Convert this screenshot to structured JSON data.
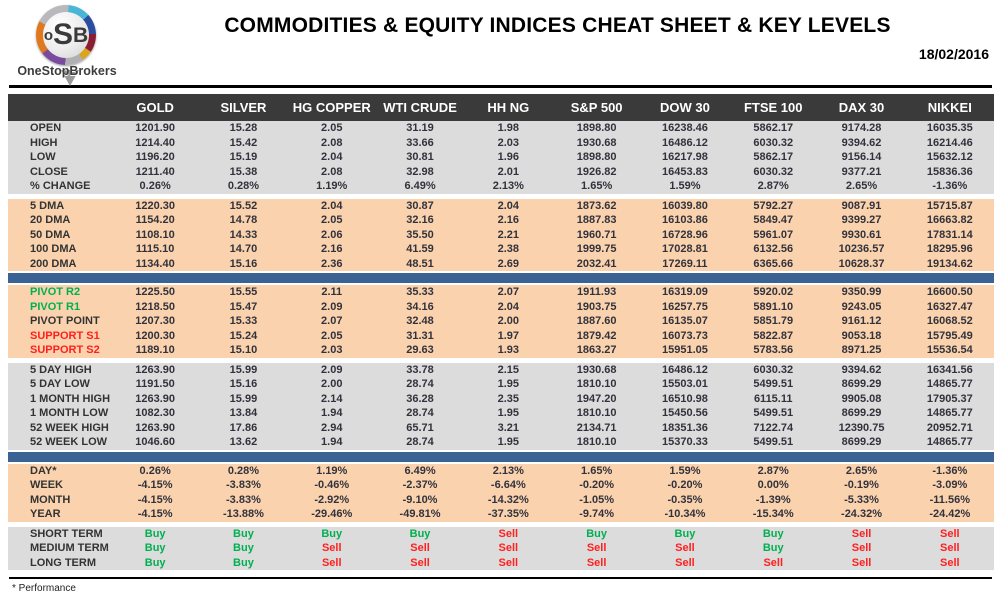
{
  "brand": {
    "monogram_o": "o",
    "monogram_s": "S",
    "monogram_b": "B",
    "name": "OneStopBrokers"
  },
  "header": {
    "title": "COMMODITIES & EQUITY INDICES CHEAT SHEET & KEY LEVELS",
    "date": "18/02/2016"
  },
  "table": {
    "columns": [
      "GOLD",
      "SILVER",
      "HG COPPER",
      "WTI CRUDE",
      "HH NG",
      "S&P 500",
      "DOW 30",
      "FTSE 100",
      "DAX 30",
      "NIKKEI"
    ],
    "sections": [
      {
        "style": "gray",
        "divider_after": false,
        "rows": [
          {
            "label": "OPEN",
            "values": [
              "1201.90",
              "15.28",
              "2.05",
              "31.19",
              "1.98",
              "1898.80",
              "16238.46",
              "5862.17",
              "9174.28",
              "16035.35"
            ]
          },
          {
            "label": "HIGH",
            "values": [
              "1214.40",
              "15.42",
              "2.08",
              "33.66",
              "2.03",
              "1930.68",
              "16486.12",
              "6030.32",
              "9394.62",
              "16214.46"
            ]
          },
          {
            "label": "LOW",
            "values": [
              "1196.20",
              "15.19",
              "2.04",
              "30.81",
              "1.96",
              "1898.80",
              "16217.98",
              "5862.17",
              "9156.14",
              "15632.12"
            ]
          },
          {
            "label": "CLOSE",
            "values": [
              "1211.40",
              "15.38",
              "2.08",
              "32.98",
              "2.01",
              "1926.82",
              "16453.83",
              "6030.32",
              "9377.21",
              "15836.36"
            ]
          },
          {
            "label": "% CHANGE",
            "values": [
              "0.26%",
              "0.28%",
              "1.19%",
              "6.49%",
              "2.13%",
              "1.65%",
              "1.59%",
              "2.87%",
              "2.65%",
              "-1.36%"
            ]
          }
        ]
      },
      {
        "style": "peach",
        "divider_after": true,
        "rows": [
          {
            "label": "5 DMA",
            "values": [
              "1220.30",
              "15.52",
              "2.04",
              "30.87",
              "2.04",
              "1873.62",
              "16039.80",
              "5792.27",
              "9087.91",
              "15715.87"
            ]
          },
          {
            "label": "20 DMA",
            "values": [
              "1154.20",
              "14.78",
              "2.05",
              "32.16",
              "2.16",
              "1887.83",
              "16103.86",
              "5849.47",
              "9399.27",
              "16663.82"
            ]
          },
          {
            "label": "50 DMA",
            "values": [
              "1108.10",
              "14.33",
              "2.06",
              "35.50",
              "2.21",
              "1960.71",
              "16728.96",
              "5961.07",
              "9930.61",
              "17831.14"
            ]
          },
          {
            "label": "100 DMA",
            "values": [
              "1115.10",
              "14.70",
              "2.16",
              "41.59",
              "2.38",
              "1999.75",
              "17028.81",
              "6132.56",
              "10236.57",
              "18295.96"
            ]
          },
          {
            "label": "200 DMA",
            "values": [
              "1134.40",
              "15.16",
              "2.36",
              "48.51",
              "2.69",
              "2032.41",
              "17269.11",
              "6365.66",
              "10628.37",
              "19134.62"
            ]
          }
        ]
      },
      {
        "style": "peach",
        "divider_after": false,
        "rows": [
          {
            "label": "PIVOT R2",
            "label_color": "buy",
            "values": [
              "1225.50",
              "15.55",
              "2.11",
              "35.33",
              "2.07",
              "1911.93",
              "16319.09",
              "5920.02",
              "9350.99",
              "16600.50"
            ]
          },
          {
            "label": "PIVOT R1",
            "label_color": "buy",
            "values": [
              "1218.50",
              "15.47",
              "2.09",
              "34.16",
              "2.04",
              "1903.75",
              "16257.75",
              "5891.10",
              "9243.05",
              "16327.47"
            ]
          },
          {
            "label": "PIVOT POINT",
            "values": [
              "1207.30",
              "15.33",
              "2.07",
              "32.48",
              "2.00",
              "1887.60",
              "16135.07",
              "5851.79",
              "9161.12",
              "16068.52"
            ]
          },
          {
            "label": "SUPPORT S1",
            "label_color": "sell",
            "values": [
              "1200.30",
              "15.24",
              "2.05",
              "31.31",
              "1.97",
              "1879.42",
              "16073.73",
              "5822.87",
              "9053.18",
              "15795.49"
            ]
          },
          {
            "label": "SUPPORT S2",
            "label_color": "sell",
            "values": [
              "1189.10",
              "15.10",
              "2.03",
              "29.63",
              "1.93",
              "1863.27",
              "15951.05",
              "5783.56",
              "8971.25",
              "15536.54"
            ]
          }
        ]
      },
      {
        "style": "gray",
        "divider_after": true,
        "rows": [
          {
            "label": "5 DAY HIGH",
            "values": [
              "1263.90",
              "15.99",
              "2.09",
              "33.78",
              "2.15",
              "1930.68",
              "16486.12",
              "6030.32",
              "9394.62",
              "16341.56"
            ]
          },
          {
            "label": "5 DAY LOW",
            "values": [
              "1191.50",
              "15.16",
              "2.00",
              "28.74",
              "1.95",
              "1810.10",
              "15503.01",
              "5499.51",
              "8699.29",
              "14865.77"
            ]
          },
          {
            "label": "1 MONTH HIGH",
            "values": [
              "1263.90",
              "15.99",
              "2.14",
              "36.28",
              "2.35",
              "1947.20",
              "16510.98",
              "6115.11",
              "9905.08",
              "17905.37"
            ]
          },
          {
            "label": "1 MONTH LOW",
            "values": [
              "1082.30",
              "13.84",
              "1.94",
              "28.74",
              "1.95",
              "1810.10",
              "15450.56",
              "5499.51",
              "8699.29",
              "14865.77"
            ]
          },
          {
            "label": "52 WEEK HIGH",
            "values": [
              "1263.90",
              "17.86",
              "2.94",
              "65.71",
              "3.21",
              "2134.71",
              "18351.36",
              "7122.74",
              "12390.75",
              "20952.71"
            ]
          },
          {
            "label": "52 WEEK LOW",
            "values": [
              "1046.60",
              "13.62",
              "1.94",
              "28.74",
              "1.95",
              "1810.10",
              "15370.33",
              "5499.51",
              "8699.29",
              "14865.77"
            ]
          }
        ]
      },
      {
        "style": "peach",
        "divider_after": false,
        "rows": [
          {
            "label": "DAY*",
            "values": [
              "0.26%",
              "0.28%",
              "1.19%",
              "6.49%",
              "2.13%",
              "1.65%",
              "1.59%",
              "2.87%",
              "2.65%",
              "-1.36%"
            ]
          },
          {
            "label": "WEEK",
            "values": [
              "-4.15%",
              "-3.83%",
              "-0.46%",
              "-2.37%",
              "-6.64%",
              "-0.20%",
              "-0.20%",
              "0.00%",
              "-0.19%",
              "-3.09%"
            ]
          },
          {
            "label": "MONTH",
            "values": [
              "-4.15%",
              "-3.83%",
              "-2.92%",
              "-9.10%",
              "-14.32%",
              "-1.05%",
              "-0.35%",
              "-1.39%",
              "-5.33%",
              "-11.56%"
            ]
          },
          {
            "label": "YEAR",
            "values": [
              "-4.15%",
              "-13.88%",
              "-29.46%",
              "-49.81%",
              "-37.35%",
              "-9.74%",
              "-10.34%",
              "-15.34%",
              "-24.32%",
              "-24.42%"
            ]
          }
        ]
      },
      {
        "style": "gray",
        "divider_after": false,
        "rows": [
          {
            "label": "SHORT TERM",
            "values": [
              "Buy",
              "Buy",
              "Buy",
              "Buy",
              "Sell",
              "Buy",
              "Buy",
              "Buy",
              "Sell",
              "Sell"
            ]
          },
          {
            "label": "MEDIUM TERM",
            "values": [
              "Buy",
              "Buy",
              "Sell",
              "Sell",
              "Sell",
              "Sell",
              "Sell",
              "Buy",
              "Sell",
              "Sell"
            ]
          },
          {
            "label": "LONG TERM",
            "values": [
              "Buy",
              "Buy",
              "Sell",
              "Sell",
              "Sell",
              "Sell",
              "Sell",
              "Sell",
              "Sell",
              "Sell"
            ]
          }
        ]
      }
    ]
  },
  "footnote": "* Performance",
  "colors": {
    "buy": "#00b050",
    "sell": "#ff2020",
    "row_gray": "#dcdcdc",
    "row_peach": "#fad3ae",
    "divider_blue": "#3a6394",
    "header_bar": "#3a3a3a"
  }
}
